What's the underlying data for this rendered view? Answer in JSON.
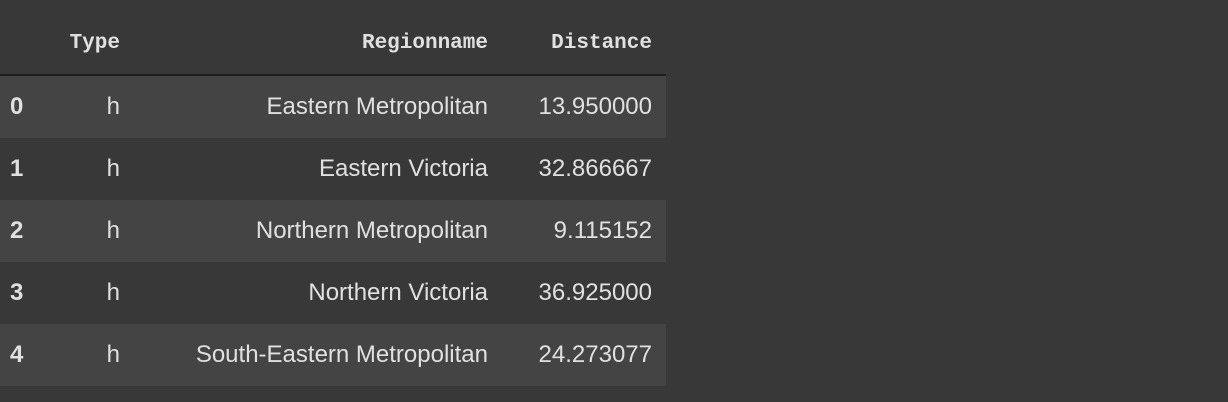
{
  "columns": [
    "Type",
    "Regionname",
    "Distance"
  ],
  "rows": [
    {
      "index": "0",
      "Type": "h",
      "Regionname": "Eastern Metropolitan",
      "Distance": "13.950000"
    },
    {
      "index": "1",
      "Type": "h",
      "Regionname": "Eastern Victoria",
      "Distance": "32.866667"
    },
    {
      "index": "2",
      "Type": "h",
      "Regionname": "Northern Metropolitan",
      "Distance": "9.115152"
    },
    {
      "index": "3",
      "Type": "h",
      "Regionname": "Northern Victoria",
      "Distance": "36.925000"
    },
    {
      "index": "4",
      "Type": "h",
      "Regionname": "South-Eastern Metropolitan",
      "Distance": "24.273077"
    }
  ]
}
